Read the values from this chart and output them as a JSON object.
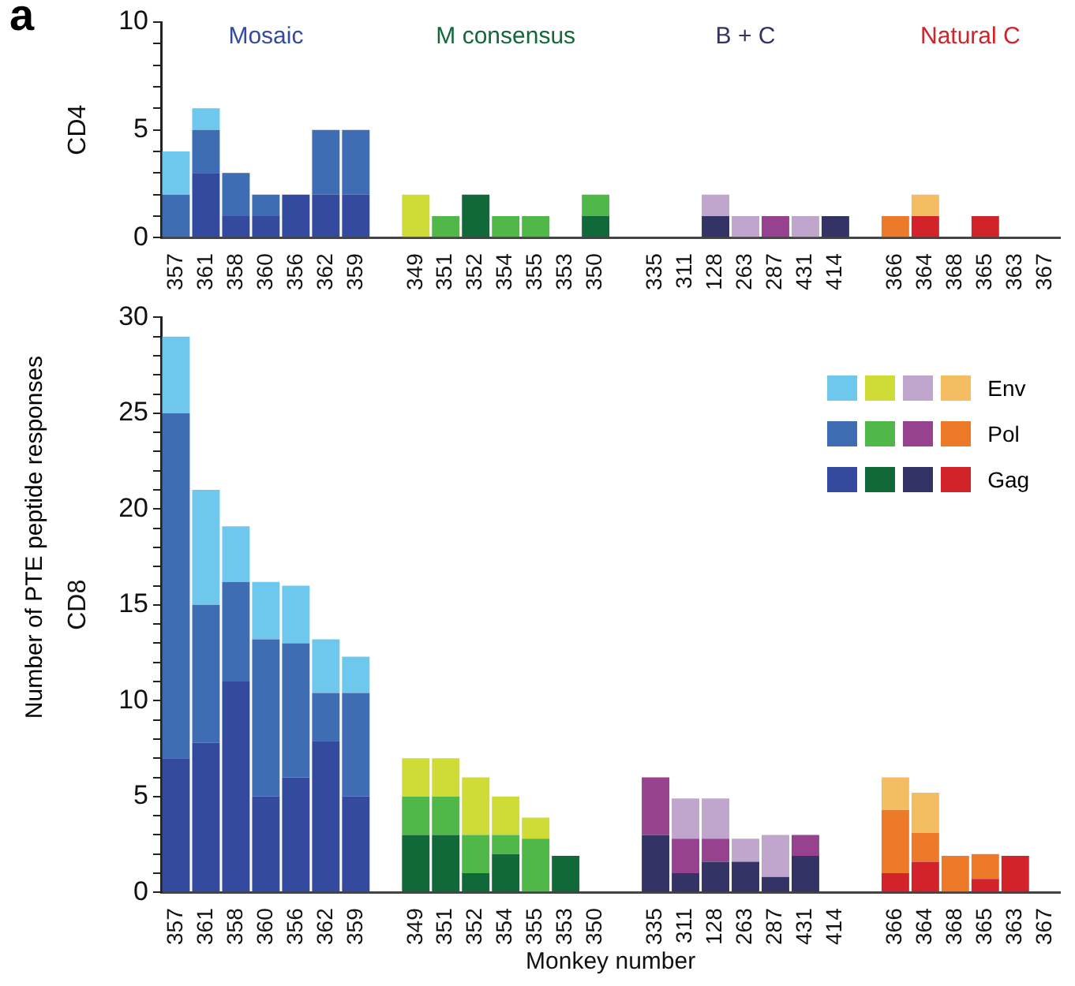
{
  "chart_data": [
    {
      "type": "bar",
      "title": "a",
      "ylabel": "CD4",
      "stacked": true,
      "grid": false,
      "annotations": [
        "Mosaic",
        "M consensus",
        "B + C",
        "Natural C"
      ],
      "categories": [
        "357",
        "361",
        "358",
        "360",
        "356",
        "362",
        "359",
        null,
        "349",
        "351",
        "352",
        "354",
        "355",
        "353",
        "350",
        null,
        "335",
        "311",
        "128",
        "263",
        "287",
        "431",
        "414",
        null,
        "366",
        "364",
        "368",
        "365",
        "363",
        "367"
      ],
      "ylim": [
        0,
        10
      ],
      "yticks": [
        0,
        {
          "value": 1,
          "label": null
        },
        {
          "value": 2,
          "label": null
        },
        {
          "value": 3,
          "label": null
        },
        {
          "value": 4,
          "label": null
        },
        5,
        {
          "value": 6,
          "label": null
        },
        {
          "value": 7,
          "label": null
        },
        {
          "value": 8,
          "label": null
        },
        {
          "value": 9,
          "label": null
        },
        10
      ],
      "series": [
        {
          "colors": [
            "#344a9e",
            "#344a9e",
            "#344a9e",
            "#344a9e",
            "#344a9e",
            "#344a9e",
            "#344a9e",
            null,
            "#116838",
            "#116838",
            "#116838",
            "#116838",
            "#116838",
            "#116838",
            "#116838",
            null,
            "#333366",
            "#333366",
            "#333366",
            "#333366",
            "#333366",
            "#333366",
            "#333366",
            null,
            "#d2232a",
            "#d2232a",
            "#d2232a",
            "#d2232a",
            "#d2232a",
            "#d2232a"
          ],
          "values": [
            0,
            3,
            1,
            1,
            2,
            2,
            2,
            null,
            0,
            0,
            2,
            0,
            0,
            0,
            1,
            null,
            0,
            0,
            1,
            0,
            0,
            0,
            1,
            null,
            0,
            1,
            0,
            1,
            0,
            0
          ]
        },
        {
          "colors": [
            "#3f6db3",
            "#3f6db3",
            "#3f6db3",
            "#3f6db3",
            "#3f6db3",
            "#3f6db3",
            "#3f6db3",
            null,
            "#4fb848",
            "#4fb848",
            "#4fb848",
            "#4fb848",
            "#4fb848",
            "#4fb848",
            "#4fb848",
            null,
            "#97428e",
            "#97428e",
            "#97428e",
            "#97428e",
            "#97428e",
            "#97428e",
            "#97428e",
            null,
            "#ed7a28",
            "#ed7a28",
            "#ed7a28",
            "#ed7a28",
            "#ed7a28",
            "#ed7a28"
          ],
          "values": [
            2,
            2,
            2,
            1,
            0,
            3,
            3,
            null,
            0,
            1,
            0,
            1,
            1,
            0,
            1,
            null,
            0,
            0,
            0,
            0,
            1,
            0,
            0,
            null,
            1,
            0,
            0,
            0,
            0,
            0
          ]
        },
        {
          "colors": [
            "#6ec8ee",
            "#6ec8ee",
            "#6ec8ee",
            "#6ec8ee",
            "#6ec8ee",
            "#6ec8ee",
            "#6ec8ee",
            null,
            "#cfdc38",
            "#cfdc38",
            "#cfdc38",
            "#cfdc38",
            "#cfdc38",
            "#cfdc38",
            "#cfdc38",
            null,
            "#c0a5cc",
            "#c0a5cc",
            "#c0a5cc",
            "#c0a5cc",
            "#c0a5cc",
            "#c0a5cc",
            "#c0a5cc",
            null,
            "#f5bd62",
            "#f5bd62",
            "#f5bd62",
            "#f5bd62",
            "#f5bd62",
            "#f5bd62"
          ],
          "values": [
            2,
            1,
            0,
            0,
            0,
            0,
            0,
            null,
            2,
            0,
            0,
            0,
            0,
            0,
            0,
            null,
            0,
            0,
            1,
            1,
            0,
            1,
            0,
            null,
            0,
            1,
            0,
            0,
            0,
            0
          ]
        }
      ]
    },
    {
      "type": "bar",
      "ylabel": "CD8",
      "xlabel": "Monkey number",
      "stacked": true,
      "grid": false,
      "legend": "top right",
      "annotations": [
        "Number of PTE peptide responses"
      ],
      "categories": [
        "357",
        "361",
        "358",
        "360",
        "356",
        "362",
        "359",
        null,
        "349",
        "351",
        "352",
        "354",
        "355",
        "353",
        "350",
        null,
        "335",
        "311",
        "128",
        "263",
        "287",
        "431",
        "414",
        null,
        "366",
        "364",
        "368",
        "365",
        "363",
        "367"
      ],
      "ylim": [
        0,
        30
      ],
      "yticks": [
        0,
        {
          "value": 1,
          "label": null
        },
        {
          "value": 2,
          "label": null
        },
        {
          "value": 3,
          "label": null
        },
        {
          "value": 4,
          "label": null
        },
        5,
        {
          "value": 6,
          "label": null
        },
        {
          "value": 7,
          "label": null
        },
        {
          "value": 8,
          "label": null
        },
        {
          "value": 9,
          "label": null
        },
        10,
        {
          "value": 11,
          "label": null
        },
        {
          "value": 12,
          "label": null
        },
        {
          "value": 13,
          "label": null
        },
        {
          "value": 14,
          "label": null
        },
        15,
        {
          "value": 16,
          "label": null
        },
        {
          "value": 17,
          "label": null
        },
        {
          "value": 18,
          "label": null
        },
        {
          "value": 19,
          "label": null
        },
        20,
        {
          "value": 21,
          "label": null
        },
        {
          "value": 22,
          "label": null
        },
        {
          "value": 23,
          "label": null
        },
        {
          "value": 24,
          "label": null
        },
        25,
        {
          "value": 26,
          "label": null
        },
        {
          "value": 27,
          "label": null
        },
        {
          "value": 28,
          "label": null
        },
        {
          "value": 29,
          "label": null
        },
        30
      ],
      "series": [
        {
          "name": "Gag",
          "colors": [
            "#344a9e",
            "#344a9e",
            "#344a9e",
            "#344a9e",
            "#344a9e",
            "#344a9e",
            "#344a9e",
            null,
            "#116838",
            "#116838",
            "#116838",
            "#116838",
            "#116838",
            "#116838",
            "#116838",
            null,
            "#333366",
            "#333366",
            "#333366",
            "#333366",
            "#333366",
            "#333366",
            "#333366",
            null,
            "#d2232a",
            "#d2232a",
            "#d2232a",
            "#d2232a",
            "#d2232a",
            "#d2232a"
          ],
          "values": [
            7,
            7.8,
            11,
            5,
            6,
            7.9,
            5,
            null,
            3,
            3,
            1,
            2,
            0,
            1.9,
            0,
            null,
            3,
            1,
            1.6,
            1.6,
            0.8,
            1.9,
            0,
            null,
            1,
            1.6,
            0,
            0.7,
            1.9,
            0
          ]
        },
        {
          "name": "Pol",
          "colors": [
            "#3f6db3",
            "#3f6db3",
            "#3f6db3",
            "#3f6db3",
            "#3f6db3",
            "#3f6db3",
            "#3f6db3",
            null,
            "#4fb848",
            "#4fb848",
            "#4fb848",
            "#4fb848",
            "#4fb848",
            "#4fb848",
            "#4fb848",
            null,
            "#97428e",
            "#97428e",
            "#97428e",
            "#97428e",
            "#97428e",
            "#97428e",
            "#97428e",
            null,
            "#ed7a28",
            "#ed7a28",
            "#ed7a28",
            "#ed7a28",
            "#ed7a28",
            "#ed7a28"
          ],
          "values": [
            18,
            7.2,
            5.2,
            8.2,
            7,
            2.5,
            5.4,
            null,
            2,
            2,
            2,
            1,
            2.8,
            0,
            0,
            null,
            3,
            1.8,
            1.2,
            0,
            0,
            1.1,
            0,
            null,
            3.3,
            1.5,
            1.9,
            1.3,
            0,
            0
          ]
        },
        {
          "name": "Env",
          "colors": [
            "#6ec8ee",
            "#6ec8ee",
            "#6ec8ee",
            "#6ec8ee",
            "#6ec8ee",
            "#6ec8ee",
            "#6ec8ee",
            null,
            "#cfdc38",
            "#cfdc38",
            "#cfdc38",
            "#cfdc38",
            "#cfdc38",
            "#cfdc38",
            "#cfdc38",
            null,
            "#c0a5cc",
            "#c0a5cc",
            "#c0a5cc",
            "#c0a5cc",
            "#c0a5cc",
            "#c0a5cc",
            "#c0a5cc",
            null,
            "#f5bd62",
            "#f5bd62",
            "#f5bd62",
            "#f5bd62",
            "#f5bd62",
            "#f5bd62"
          ],
          "values": [
            4,
            6,
            2.9,
            3,
            3,
            2.8,
            1.9,
            null,
            2,
            2,
            3,
            2,
            1.1,
            0,
            0,
            null,
            0,
            2.1,
            2.1,
            1.2,
            2.2,
            0,
            0,
            null,
            1.7,
            2.1,
            0,
            0,
            0,
            0
          ]
        }
      ]
    }
  ]
}
